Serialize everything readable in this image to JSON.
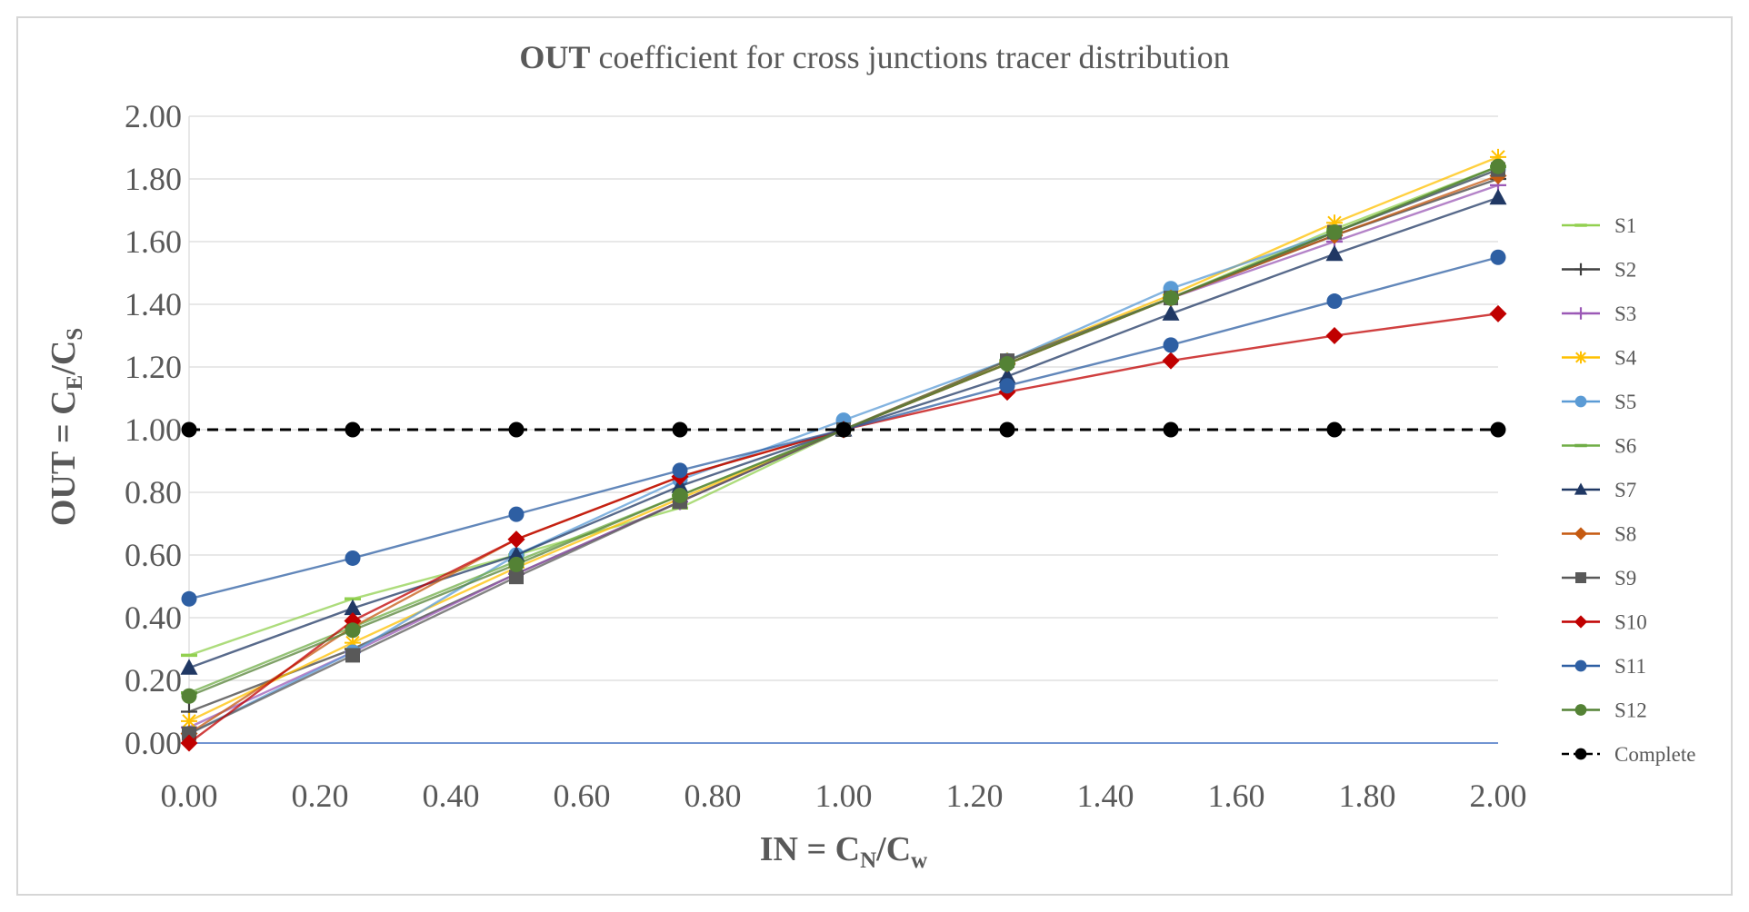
{
  "chart_data": {
    "type": "line",
    "title_bold": "OUT",
    "title_rest": " coefficient for cross junctions tracer distribution",
    "xlabel": {
      "main": "IN = C",
      "sub1": "N",
      "mid": "/C",
      "sub2": "w"
    },
    "ylabel": {
      "main": "OUT = C",
      "sub1": "E",
      "mid": "/C",
      "sub2": "S"
    },
    "x": [
      0.0,
      0.25,
      0.5,
      0.75,
      1.0,
      1.25,
      1.5,
      1.75,
      2.0
    ],
    "xlim": [
      0,
      2
    ],
    "ylim": [
      0,
      2
    ],
    "x_ticks": [
      "0.00",
      "0.20",
      "0.40",
      "0.60",
      "0.80",
      "1.00",
      "1.20",
      "1.40",
      "1.60",
      "1.80",
      "2.00"
    ],
    "y_ticks": [
      "0.00",
      "0.20",
      "0.40",
      "0.60",
      "0.80",
      "1.00",
      "1.20",
      "1.40",
      "1.60",
      "1.80",
      "2.00"
    ],
    "grid": "horizontal",
    "legend_position": "right",
    "series": [
      {
        "name": "S1",
        "color": "#92d050",
        "marker": "dash",
        "values": [
          0.28,
          0.46,
          0.6,
          0.75,
          1.0,
          1.22,
          1.42,
          1.64,
          1.84
        ]
      },
      {
        "name": "S2",
        "color": "#404040",
        "marker": "plus",
        "values": [
          0.1,
          0.3,
          0.54,
          0.77,
          1.0,
          1.21,
          1.42,
          1.62,
          1.8
        ]
      },
      {
        "name": "S3",
        "color": "#9b59b6",
        "marker": "plus",
        "values": [
          0.05,
          0.29,
          0.54,
          0.77,
          1.0,
          1.21,
          1.42,
          1.6,
          1.78
        ]
      },
      {
        "name": "S4",
        "color": "#ffc000",
        "marker": "asterisk",
        "values": [
          0.07,
          0.32,
          0.56,
          0.78,
          1.0,
          1.22,
          1.43,
          1.66,
          1.87
        ]
      },
      {
        "name": "S5",
        "color": "#5b9bd5",
        "marker": "circle",
        "values": [
          0.03,
          0.29,
          0.6,
          0.84,
          1.03,
          1.22,
          1.45,
          1.63,
          1.83
        ]
      },
      {
        "name": "S6",
        "color": "#70ad47",
        "marker": "dash",
        "values": [
          0.16,
          0.37,
          0.58,
          0.79,
          1.0,
          1.21,
          1.42,
          1.63,
          1.84
        ]
      },
      {
        "name": "S7",
        "color": "#203864",
        "marker": "triangle",
        "values": [
          0.24,
          0.43,
          0.6,
          0.82,
          1.0,
          1.17,
          1.37,
          1.56,
          1.74
        ]
      },
      {
        "name": "S8",
        "color": "#c55a11",
        "marker": "diamond",
        "values": [
          0.03,
          0.37,
          0.65,
          0.85,
          1.0,
          1.21,
          1.42,
          1.62,
          1.81
        ]
      },
      {
        "name": "S9",
        "color": "#595959",
        "marker": "square",
        "values": [
          0.03,
          0.28,
          0.53,
          0.77,
          1.0,
          1.22,
          1.42,
          1.63,
          1.83
        ]
      },
      {
        "name": "S10",
        "color": "#c00000",
        "marker": "diamond",
        "values": [
          0.0,
          0.39,
          0.65,
          0.85,
          1.0,
          1.12,
          1.22,
          1.3,
          1.37
        ]
      },
      {
        "name": "S11",
        "color": "#2e5fa3",
        "marker": "circle",
        "values": [
          0.46,
          0.59,
          0.73,
          0.87,
          1.0,
          1.14,
          1.27,
          1.41,
          1.55
        ]
      },
      {
        "name": "S12",
        "color": "#548235",
        "marker": "circle",
        "values": [
          0.15,
          0.36,
          0.57,
          0.79,
          1.0,
          1.21,
          1.42,
          1.63,
          1.84
        ]
      },
      {
        "name": "Complete",
        "color": "#000000",
        "marker": "circle",
        "dashed": true,
        "values": [
          1.0,
          1.0,
          1.0,
          1.0,
          1.0,
          1.0,
          1.0,
          1.0,
          1.0
        ]
      }
    ]
  }
}
